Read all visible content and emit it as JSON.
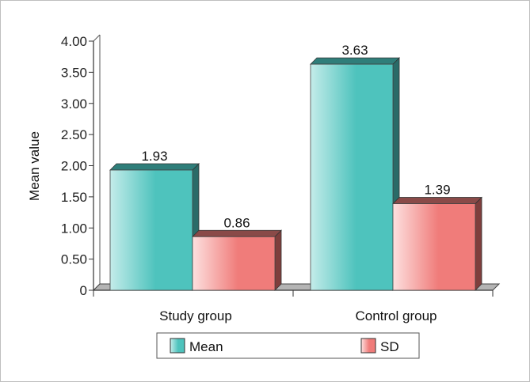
{
  "chart_data": {
    "type": "bar",
    "ylabel": "Mean value",
    "xlabel": "",
    "ylim": [
      0,
      4
    ],
    "yticks": [
      "0",
      "0.50",
      "1.00",
      "1.50",
      "2.00",
      "2.50",
      "3.00",
      "3.50",
      "4.00"
    ],
    "categories": [
      "Study group",
      "Control group"
    ],
    "series": [
      {
        "name": "Mean",
        "values": [
          1.93,
          3.63
        ],
        "labels": [
          "1.93",
          "3.63"
        ],
        "color": "#4ec3bd"
      },
      {
        "name": "SD",
        "values": [
          0.86,
          1.39
        ],
        "labels": [
          "0.86",
          "1.39"
        ],
        "color": "#f07c7a"
      }
    ],
    "legend": "bottom",
    "grid": false,
    "style": "3d"
  }
}
